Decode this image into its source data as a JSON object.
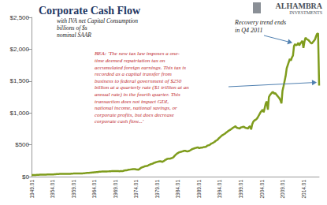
{
  "chart_data": {
    "type": "line",
    "title": "Corporate Cash Flow",
    "subtitle": "with IVA net Capital Consumption\nbillions of $s\nnominal SAAR",
    "annotations": [
      {
        "text": "Recovery trend ends\nin Q4 2011"
      },
      {
        "text": "BEA: 'The new tax law imposes a one-\ntime deemed repatriation tax on\naccumulated foreign earnings. This tax is\nrecorded as a capital transfer from\nbusiness to federal government of $250\nbillion at a quarterly rate ($1 trillion at an\nannual rate) in the fourth quarter. This\ntransaction does not impact GDI,\nnational income, national savings, or\ncorporate profits, but does decrease\ncorporate cash flow...'"
      }
    ],
    "logo": [
      "ALHAMBRA",
      "INVESTMENTS"
    ],
    "color": "#7f9c1d",
    "grid": false,
    "ylim": [
      0,
      2500
    ],
    "yticks": [
      {
        "value": 0,
        "label": "$0"
      },
      {
        "value": 500,
        "label": "$500"
      },
      {
        "value": 1000,
        "label": "$1,000"
      },
      {
        "value": 1500,
        "label": "$1,500"
      },
      {
        "value": 2000,
        "label": "$2,000"
      },
      {
        "value": 2500,
        "label": "$2,500"
      }
    ],
    "categories": [
      "1949.01",
      null,
      null,
      null,
      null,
      null,
      null,
      null,
      null,
      null,
      null,
      null,
      null,
      null,
      null,
      null,
      null,
      null,
      null,
      null,
      "1954.01",
      null,
      null,
      null,
      null,
      null,
      null,
      null,
      null,
      null,
      null,
      null,
      null,
      null,
      null,
      null,
      null,
      null,
      null,
      null,
      "1959.01",
      null,
      null,
      null,
      null,
      null,
      null,
      null,
      null,
      null,
      null,
      null,
      null,
      null,
      null,
      null,
      null,
      null,
      null,
      null,
      "1964.01",
      null,
      null,
      null,
      null,
      null,
      null,
      null,
      null,
      null,
      null,
      null,
      null,
      null,
      null,
      null,
      null,
      null,
      null,
      null,
      "1969.01",
      null,
      null,
      null,
      null,
      null,
      null,
      null,
      null,
      null,
      null,
      null,
      null,
      null,
      null,
      null,
      null,
      null,
      null,
      null,
      "1974.01",
      null,
      null,
      null,
      null,
      null,
      null,
      null,
      null,
      null,
      null,
      null,
      null,
      null,
      null,
      null,
      null,
      null,
      null,
      null,
      "1979.01",
      null,
      null,
      null,
      null,
      null,
      null,
      null,
      null,
      null,
      null,
      null,
      null,
      null,
      null,
      null,
      null,
      null,
      null,
      null,
      "1984.01",
      null,
      null,
      null,
      null,
      null,
      null,
      null,
      null,
      null,
      null,
      null,
      null,
      null,
      null,
      null,
      null,
      null,
      null,
      null,
      "1989.01",
      null,
      null,
      null,
      null,
      null,
      null,
      null,
      null,
      null,
      null,
      null,
      null,
      null,
      null,
      null,
      null,
      null,
      null,
      null,
      "1994.01",
      null,
      null,
      null,
      null,
      null,
      null,
      null,
      null,
      null,
      null,
      null,
      null,
      null,
      null,
      null,
      null,
      null,
      null,
      null,
      "1999.01",
      null,
      null,
      null,
      null,
      null,
      null,
      null,
      null,
      null,
      null,
      null,
      null,
      null,
      null,
      null,
      null,
      null,
      null,
      null,
      "2004.01",
      null,
      null,
      null,
      null,
      null,
      null,
      null,
      null,
      null,
      null,
      null,
      null,
      null,
      null,
      null,
      null,
      null,
      null,
      null,
      "2009.01",
      null,
      null,
      null,
      null,
      null,
      null,
      null,
      null,
      null,
      null,
      null,
      null,
      null,
      null,
      null,
      null,
      null,
      null,
      null,
      "2014.01",
      null,
      null,
      null,
      null,
      null,
      null,
      null,
      null,
      null,
      null,
      null,
      null,
      null,
      null,
      null
    ],
    "values": [
      24,
      24,
      25,
      25,
      26,
      27,
      28,
      29,
      30,
      30,
      31,
      31,
      31,
      32,
      32,
      33,
      33,
      34,
      34,
      34,
      35,
      35,
      36,
      37,
      39,
      40,
      41,
      42,
      42,
      42,
      43,
      43,
      44,
      44,
      44,
      44,
      43,
      43,
      45,
      46,
      48,
      49,
      48,
      49,
      49,
      49,
      49,
      50,
      50,
      51,
      53,
      54,
      57,
      58,
      59,
      60,
      61,
      62,
      64,
      65,
      68,
      69,
      70,
      71,
      75,
      76,
      77,
      79,
      80,
      81,
      81,
      81,
      81,
      82,
      83,
      85,
      85,
      87,
      88,
      88,
      88,
      88,
      87,
      86,
      85,
      86,
      87,
      85,
      92,
      95,
      98,
      100,
      104,
      107,
      110,
      113,
      115,
      117,
      117,
      118,
      112,
      110,
      108,
      115,
      130,
      140,
      148,
      152,
      160,
      164,
      166,
      170,
      180,
      188,
      195,
      200,
      205,
      215,
      220,
      225,
      230,
      235,
      238,
      240,
      238,
      232,
      240,
      248,
      265,
      270,
      280,
      282,
      280,
      285,
      290,
      295,
      310,
      330,
      345,
      360,
      370,
      380,
      385,
      390,
      395,
      400,
      405,
      405,
      400,
      395,
      400,
      405,
      415,
      425,
      435,
      440,
      445,
      450,
      455,
      460,
      450,
      450,
      455,
      455,
      460,
      465,
      465,
      470,
      485,
      490,
      495,
      505,
      520,
      525,
      535,
      545,
      560,
      570,
      580,
      600,
      615,
      630,
      645,
      655,
      665,
      675,
      690,
      700,
      715,
      725,
      735,
      745,
      760,
      770,
      780,
      790,
      770,
      765,
      760,
      755,
      770,
      775,
      780,
      785,
      770,
      765,
      760,
      755,
      780,
      790,
      740,
      820,
      860,
      880,
      890,
      900,
      920,
      950,
      980,
      1010,
      1030,
      1050,
      1010,
      1080,
      1150,
      1180,
      1050,
      1250,
      1280,
      1300,
      1320,
      1330,
      1300,
      1310,
      1290,
      1270,
      1250,
      1230,
      1200,
      1150,
      1350,
      1420,
      1500,
      1580,
      1700,
      1750,
      1800,
      1850,
      1820,
      1870,
      1900,
      2050,
      2080,
      2060,
      2070,
      2100,
      2060,
      2090,
      2110,
      2130,
      2020,
      2120,
      2180,
      2160,
      2150,
      2140,
      2120,
      2100,
      2090,
      2110,
      2130,
      2150,
      2200,
      2240,
      2250,
      1430
    ]
  }
}
